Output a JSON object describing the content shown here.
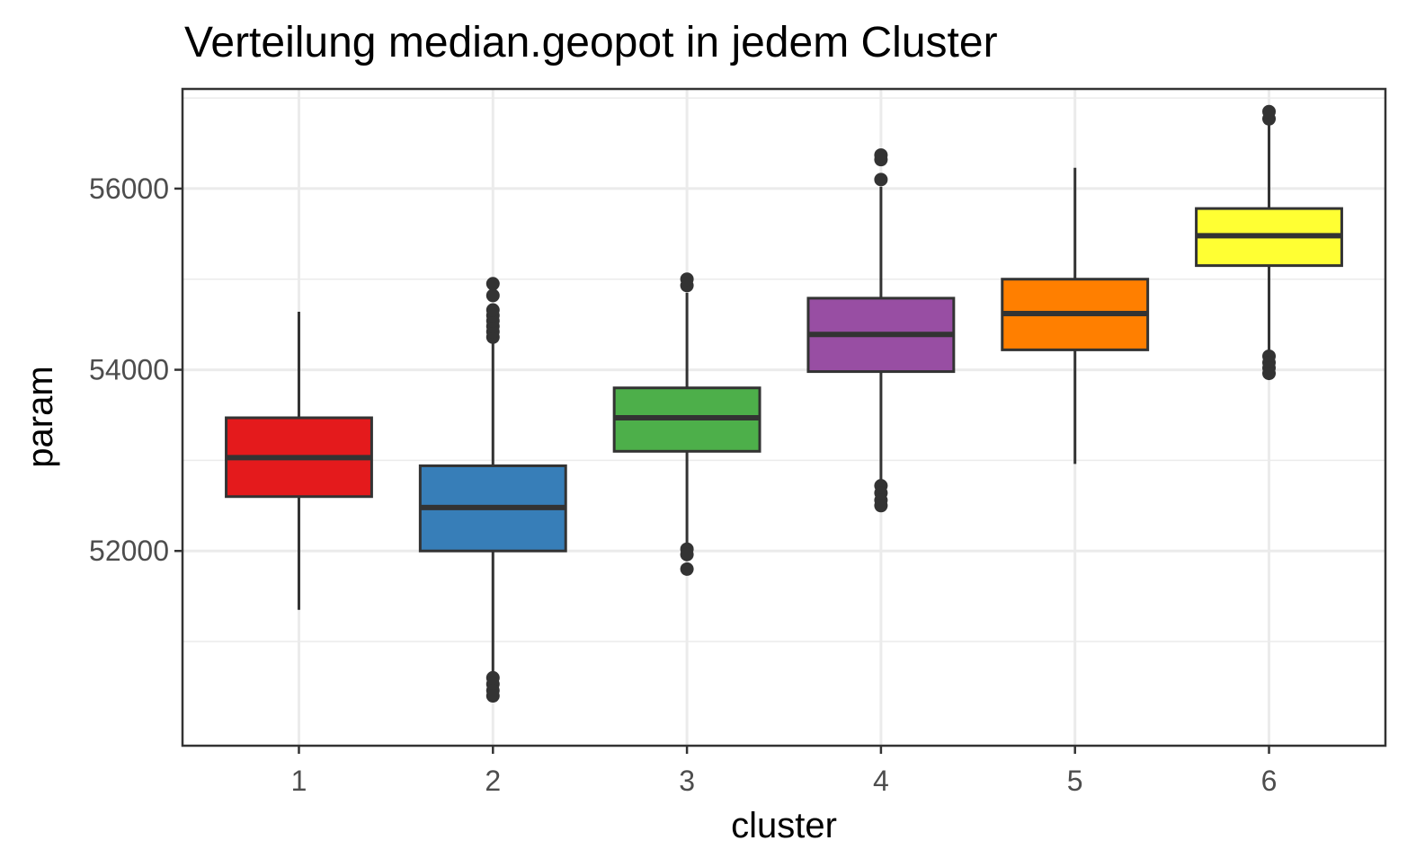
{
  "chart_data": {
    "type": "boxplot",
    "title": "Verteilung median.geopot in jedem Cluster",
    "xlabel": "cluster",
    "ylabel": "param",
    "categories": [
      "1",
      "2",
      "3",
      "4",
      "5",
      "6"
    ],
    "ylim": [
      49850,
      57100
    ],
    "yticks": [
      52000,
      54000,
      56000
    ],
    "grid": true,
    "legend": "none",
    "box_edge_color": "#333333",
    "boxes": [
      {
        "category": "1",
        "color": "#E41A1C",
        "min": 51350,
        "q1": 52600,
        "median": 53030,
        "q3": 53470,
        "max": 54640,
        "outliers": []
      },
      {
        "category": "2",
        "color": "#377EB8",
        "min": 50650,
        "q1": 52000,
        "median": 52480,
        "q3": 52940,
        "max": 54300,
        "outliers": [
          54360,
          54420,
          54480,
          54540,
          54600,
          54660,
          54820,
          54950,
          50600,
          50530,
          50460,
          50400
        ]
      },
      {
        "category": "3",
        "color": "#4DAF4A",
        "min": 52050,
        "q1": 53100,
        "median": 53470,
        "q3": 53800,
        "max": 54850,
        "outliers": [
          54930,
          55000,
          52020,
          51960,
          51800
        ]
      },
      {
        "category": "4",
        "color": "#984EA3",
        "min": 52750,
        "q1": 53980,
        "median": 54390,
        "q3": 54790,
        "max": 56020,
        "outliers": [
          56100,
          56320,
          56370,
          52720,
          52640,
          52560,
          52500
        ]
      },
      {
        "category": "5",
        "color": "#FF7F00",
        "min": 52960,
        "q1": 54220,
        "median": 54620,
        "q3": 55000,
        "max": 56230,
        "outliers": []
      },
      {
        "category": "6",
        "color": "#FFFF33",
        "min": 54190,
        "q1": 55150,
        "median": 55480,
        "q3": 55780,
        "max": 56700,
        "outliers": [
          56770,
          56850,
          54150,
          54080,
          54020,
          53960
        ]
      }
    ]
  }
}
